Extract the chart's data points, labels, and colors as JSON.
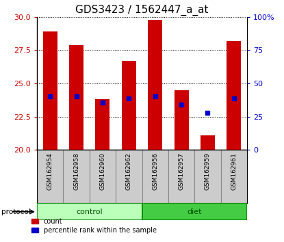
{
  "title": "GDS3423 / 1562447_a_at",
  "samples": [
    "GSM162954",
    "GSM162958",
    "GSM162960",
    "GSM162962",
    "GSM162956",
    "GSM162957",
    "GSM162959",
    "GSM162961"
  ],
  "red_values": [
    28.9,
    27.9,
    23.8,
    26.7,
    29.8,
    24.5,
    21.1,
    28.2
  ],
  "blue_values": [
    24.05,
    24.05,
    23.55,
    23.9,
    24.05,
    23.4,
    22.8,
    23.9
  ],
  "y_min": 20,
  "y_max": 30,
  "y_ticks": [
    20,
    22.5,
    25,
    27.5,
    30
  ],
  "y2_ticks": [
    0,
    25,
    50,
    75,
    100
  ],
  "groups": [
    {
      "name": "control",
      "indices": [
        0,
        1,
        2,
        3
      ],
      "color": "#bbffbb"
    },
    {
      "name": "diet",
      "indices": [
        4,
        5,
        6,
        7
      ],
      "color": "#44cc44"
    }
  ],
  "bar_width": 0.55,
  "red_color": "#cc0000",
  "blue_color": "#0000cc",
  "title_fontsize": 11,
  "left_tick_color": "#cc0000",
  "right_tick_color": "#0000cc",
  "bg_color": "#ffffff",
  "plot_bg": "#ffffff",
  "label_bg": "#cccccc",
  "grid_color": "#000000"
}
